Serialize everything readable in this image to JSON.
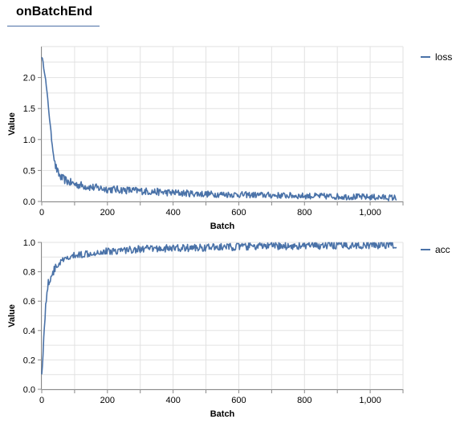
{
  "panel": {
    "title": "onBatchEnd"
  },
  "charts": [
    {
      "id": "loss",
      "xlabel": "Batch",
      "ylabel": "Value",
      "xticks": [
        "0",
        "200",
        "400",
        "600",
        "800",
        "1,000"
      ],
      "yticks": [
        "0.0",
        "0.5",
        "1.0",
        "1.5",
        "2.0"
      ],
      "legend": "loss",
      "color": "#4a72a8"
    },
    {
      "id": "acc",
      "xlabel": "Batch",
      "ylabel": "Value",
      "xticks": [
        "0",
        "200",
        "400",
        "600",
        "800",
        "1,000"
      ],
      "yticks": [
        "0.0",
        "0.2",
        "0.4",
        "0.6",
        "0.8",
        "1.0"
      ],
      "legend": "acc",
      "color": "#4a72a8"
    }
  ],
  "chart_data": [
    {
      "type": "line",
      "xlabel": "Batch",
      "ylabel": "Value",
      "xlim": [
        0,
        1100
      ],
      "ylim": [
        0,
        2.5
      ],
      "grid": true,
      "legend_position": "top-right",
      "series": [
        {
          "name": "loss",
          "x": [
            0,
            10,
            20,
            30,
            40,
            50,
            60,
            80,
            100,
            150,
            200,
            300,
            400,
            500,
            600,
            700,
            800,
            900,
            1000,
            1080
          ],
          "y": [
            2.35,
            2.05,
            1.55,
            1.0,
            0.6,
            0.45,
            0.38,
            0.32,
            0.28,
            0.23,
            0.2,
            0.17,
            0.14,
            0.12,
            0.11,
            0.1,
            0.09,
            0.08,
            0.07,
            0.06
          ]
        }
      ]
    },
    {
      "type": "line",
      "xlabel": "Batch",
      "ylabel": "Value",
      "xlim": [
        0,
        1100
      ],
      "ylim": [
        0,
        1.0
      ],
      "grid": true,
      "legend_position": "top-right",
      "series": [
        {
          "name": "acc",
          "x": [
            0,
            5,
            10,
            15,
            20,
            30,
            40,
            50,
            60,
            80,
            100,
            150,
            200,
            300,
            400,
            500,
            600,
            700,
            800,
            900,
            1000,
            1080
          ],
          "y": [
            0.1,
            0.3,
            0.5,
            0.65,
            0.72,
            0.78,
            0.82,
            0.85,
            0.87,
            0.89,
            0.91,
            0.93,
            0.94,
            0.955,
            0.96,
            0.965,
            0.97,
            0.975,
            0.975,
            0.98,
            0.98,
            0.985
          ]
        }
      ]
    }
  ]
}
